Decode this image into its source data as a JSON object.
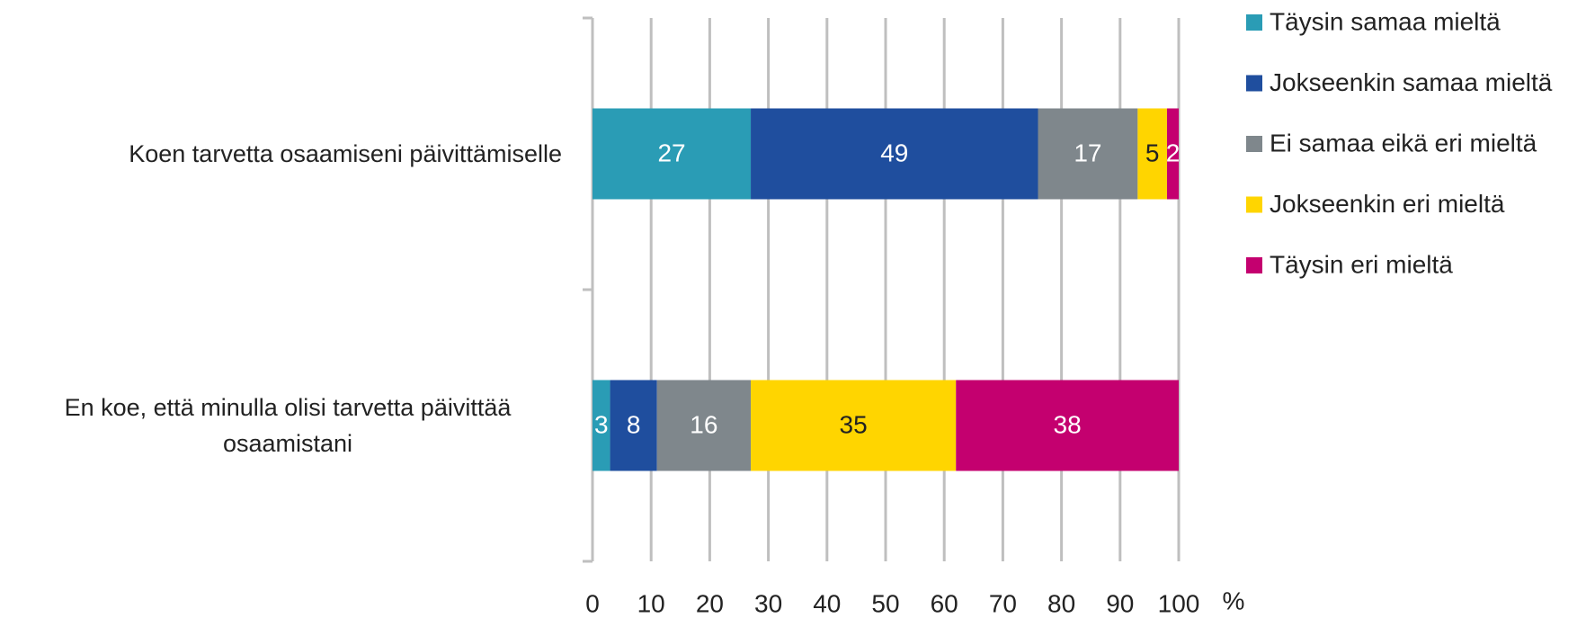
{
  "chart_data": {
    "type": "stacked_bar_horizontal",
    "categories": [
      "Koen tarvetta osaamiseni päivittämiselle",
      "En koe, että minulla olisi tarvetta päivittää osaamistani"
    ],
    "series": [
      {
        "name": "Täysin samaa mieltä",
        "color": "#2a9cb5",
        "values": [
          27,
          3
        ]
      },
      {
        "name": "Jokseenkin samaa mieltä",
        "color": "#1f4e9e",
        "values": [
          49,
          8
        ]
      },
      {
        "name": "Ei samaa eikä eri mieltä",
        "color": "#7f878c",
        "values": [
          17,
          16
        ]
      },
      {
        "name": "Jokseenkin eri mieltä",
        "color": "#ffd500",
        "values": [
          5,
          35
        ]
      },
      {
        "name": "Täysin eri mieltä",
        "color": "#c4006f",
        "values": [
          2,
          38
        ]
      }
    ],
    "xlim": [
      0,
      100
    ],
    "xticks": [
      0,
      10,
      20,
      30,
      40,
      50,
      60,
      70,
      80,
      90,
      100
    ],
    "x_label": "%",
    "grid": true,
    "legend": "right"
  }
}
